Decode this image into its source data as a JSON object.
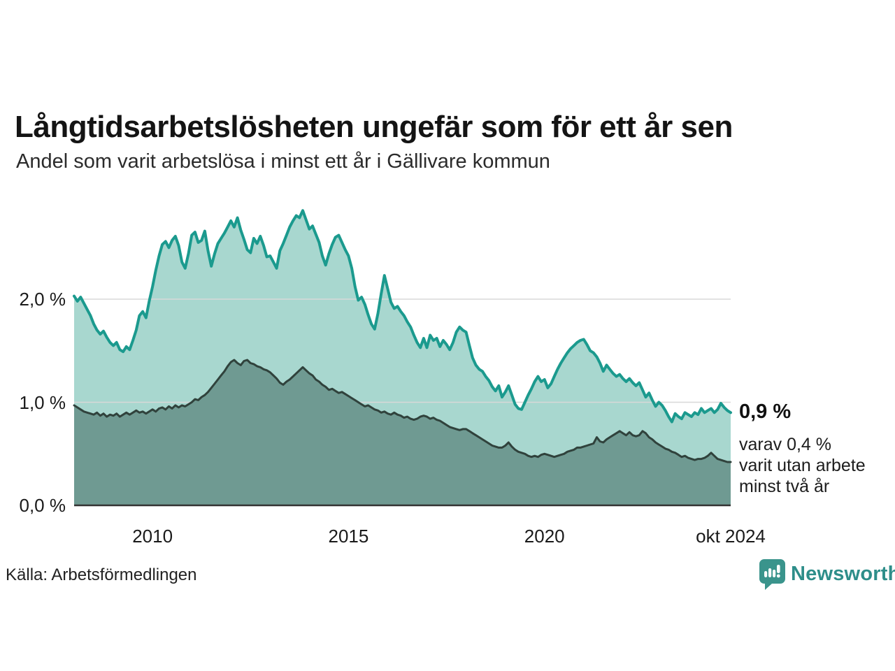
{
  "header": {
    "title": "Långtidsarbetslösheten ungefär som för ett år sen",
    "subtitle": "Andel som varit arbetslösa i minst ett år i Gällivare kommun"
  },
  "annotation": {
    "value_label": "0,9 %",
    "detail_lines": [
      "varav 0,4 %",
      "varit utan arbete",
      "minst två år"
    ]
  },
  "source": "Källa: Arbetsförmedlingen",
  "branding": {
    "name": "Newsworthy",
    "icon": "bar-chart-speech-bubble-icon",
    "text_color": "#2e8e8a",
    "icon_color": "#3a948c"
  },
  "axes": {
    "y_ticks": [
      {
        "label": "2,0 %",
        "value": 2.0
      },
      {
        "label": "1,0 %",
        "value": 1.0
      },
      {
        "label": "0,0 %",
        "value": 0.0
      }
    ],
    "x_ticks": [
      {
        "label": "2010",
        "year": 2010.0
      },
      {
        "label": "2015",
        "year": 2015.0
      },
      {
        "label": "2020",
        "year": 2020.0
      },
      {
        "label": "okt 2024",
        "year": 2024.75
      }
    ]
  },
  "chart_data": {
    "type": "area",
    "title": "Långtidsarbetslösheten ungefär som för ett år sen",
    "subtitle": "Andel som varit arbetslösa i minst ett år i Gällivare kommun",
    "unit": "%",
    "x_start": 2008.0,
    "x_step_months": 1,
    "xlim": [
      2008.0,
      2024.75
    ],
    "ylim": [
      0,
      3.0
    ],
    "grid": "horizontal",
    "legend_position": "none",
    "last_point_labels": {
      "minst_ett_ar": "0,9 %",
      "minst_tva_ar": "0,4 %"
    },
    "colors": {
      "gridline": "#d8d8d8",
      "axis": "#333333"
    },
    "series": [
      {
        "name": "Andel arbetslösa minst ett år",
        "stroke": "#1b9a8e",
        "fill": "#a8d7cf",
        "stroke_width": 4,
        "values": [
          2.03,
          1.98,
          2.02,
          1.96,
          1.9,
          1.84,
          1.76,
          1.7,
          1.66,
          1.69,
          1.63,
          1.58,
          1.55,
          1.58,
          1.51,
          1.49,
          1.54,
          1.51,
          1.6,
          1.7,
          1.84,
          1.88,
          1.82,
          1.98,
          2.12,
          2.28,
          2.42,
          2.53,
          2.56,
          2.5,
          2.57,
          2.61,
          2.52,
          2.36,
          2.3,
          2.44,
          2.62,
          2.65,
          2.55,
          2.57,
          2.66,
          2.47,
          2.32,
          2.44,
          2.54,
          2.59,
          2.64,
          2.7,
          2.76,
          2.7,
          2.79,
          2.67,
          2.58,
          2.48,
          2.45,
          2.59,
          2.54,
          2.61,
          2.52,
          2.41,
          2.42,
          2.36,
          2.3,
          2.47,
          2.54,
          2.62,
          2.7,
          2.76,
          2.81,
          2.79,
          2.86,
          2.77,
          2.68,
          2.71,
          2.63,
          2.55,
          2.42,
          2.33,
          2.44,
          2.53,
          2.6,
          2.62,
          2.55,
          2.48,
          2.42,
          2.3,
          2.12,
          1.99,
          2.02,
          1.95,
          1.85,
          1.76,
          1.71,
          1.86,
          2.05,
          2.23,
          2.1,
          1.97,
          1.91,
          1.93,
          1.88,
          1.84,
          1.78,
          1.73,
          1.65,
          1.58,
          1.53,
          1.62,
          1.53,
          1.65,
          1.6,
          1.62,
          1.54,
          1.6,
          1.56,
          1.51,
          1.58,
          1.68,
          1.73,
          1.7,
          1.68,
          1.55,
          1.43,
          1.36,
          1.32,
          1.3,
          1.25,
          1.21,
          1.15,
          1.11,
          1.16,
          1.05,
          1.1,
          1.16,
          1.07,
          0.98,
          0.94,
          0.93,
          1.0,
          1.07,
          1.13,
          1.2,
          1.25,
          1.2,
          1.22,
          1.14,
          1.18,
          1.25,
          1.32,
          1.38,
          1.43,
          1.48,
          1.52,
          1.55,
          1.58,
          1.6,
          1.61,
          1.56,
          1.5,
          1.48,
          1.44,
          1.38,
          1.3,
          1.36,
          1.32,
          1.28,
          1.25,
          1.27,
          1.23,
          1.2,
          1.23,
          1.19,
          1.16,
          1.19,
          1.12,
          1.05,
          1.09,
          1.02,
          0.96,
          1.0,
          0.97,
          0.92,
          0.86,
          0.81,
          0.89,
          0.86,
          0.84,
          0.9,
          0.88,
          0.86,
          0.9,
          0.88,
          0.94,
          0.9,
          0.92,
          0.94,
          0.9,
          0.93,
          0.99,
          0.95,
          0.92,
          0.9
        ]
      },
      {
        "name": "Andel arbetslösa minst två år",
        "stroke": "#30423c",
        "fill": "#6f9a92",
        "stroke_width": 3,
        "values": [
          0.97,
          0.95,
          0.93,
          0.91,
          0.9,
          0.89,
          0.88,
          0.9,
          0.87,
          0.89,
          0.86,
          0.88,
          0.87,
          0.89,
          0.86,
          0.88,
          0.9,
          0.88,
          0.9,
          0.92,
          0.9,
          0.91,
          0.89,
          0.91,
          0.93,
          0.91,
          0.94,
          0.95,
          0.93,
          0.96,
          0.94,
          0.97,
          0.95,
          0.97,
          0.96,
          0.98,
          1.0,
          1.03,
          1.02,
          1.05,
          1.07,
          1.1,
          1.14,
          1.18,
          1.22,
          1.26,
          1.3,
          1.35,
          1.39,
          1.41,
          1.38,
          1.36,
          1.4,
          1.41,
          1.38,
          1.37,
          1.35,
          1.34,
          1.32,
          1.31,
          1.29,
          1.26,
          1.23,
          1.19,
          1.17,
          1.2,
          1.22,
          1.25,
          1.28,
          1.31,
          1.34,
          1.31,
          1.28,
          1.26,
          1.22,
          1.2,
          1.17,
          1.15,
          1.12,
          1.13,
          1.11,
          1.09,
          1.1,
          1.08,
          1.06,
          1.04,
          1.02,
          1.0,
          0.98,
          0.96,
          0.97,
          0.95,
          0.93,
          0.92,
          0.9,
          0.91,
          0.89,
          0.88,
          0.9,
          0.88,
          0.87,
          0.85,
          0.86,
          0.84,
          0.83,
          0.84,
          0.86,
          0.87,
          0.86,
          0.84,
          0.85,
          0.83,
          0.82,
          0.8,
          0.78,
          0.76,
          0.75,
          0.74,
          0.73,
          0.74,
          0.74,
          0.72,
          0.7,
          0.68,
          0.66,
          0.64,
          0.62,
          0.6,
          0.58,
          0.57,
          0.56,
          0.56,
          0.58,
          0.61,
          0.57,
          0.54,
          0.52,
          0.51,
          0.5,
          0.48,
          0.47,
          0.48,
          0.47,
          0.49,
          0.5,
          0.49,
          0.48,
          0.47,
          0.48,
          0.49,
          0.5,
          0.52,
          0.53,
          0.54,
          0.56,
          0.56,
          0.57,
          0.58,
          0.59,
          0.6,
          0.66,
          0.62,
          0.61,
          0.64,
          0.66,
          0.68,
          0.7,
          0.72,
          0.7,
          0.68,
          0.71,
          0.68,
          0.67,
          0.68,
          0.72,
          0.7,
          0.66,
          0.64,
          0.61,
          0.59,
          0.57,
          0.55,
          0.54,
          0.52,
          0.51,
          0.49,
          0.47,
          0.48,
          0.46,
          0.45,
          0.44,
          0.45,
          0.45,
          0.46,
          0.48,
          0.51,
          0.48,
          0.45,
          0.44,
          0.43,
          0.42,
          0.42
        ]
      }
    ]
  }
}
